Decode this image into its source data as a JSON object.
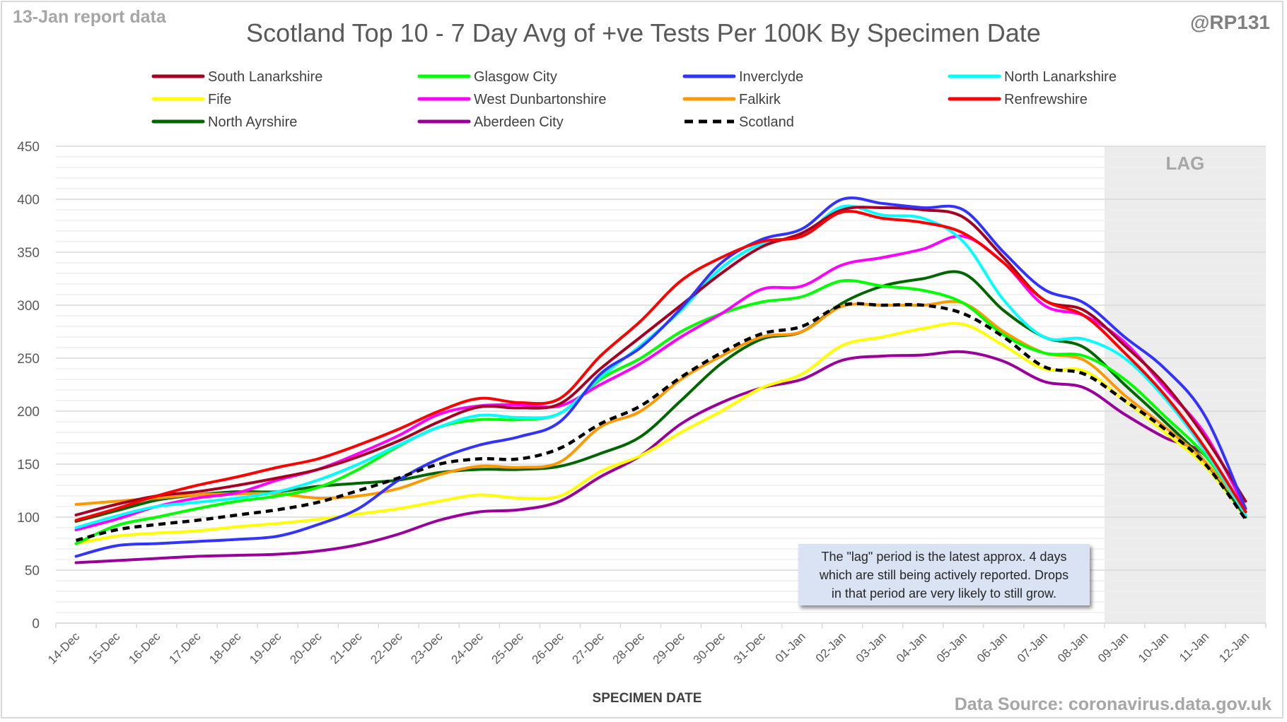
{
  "header": {
    "report_label": "13-Jan report data",
    "handle": "@RP131",
    "source": "Data Source: coronavirus.data.gov.uk"
  },
  "note": {
    "lines": [
      "The \"lag\" period is the latest approx. 4 days",
      "which are still being actively reported.  Drops",
      "in that period are very likely to still grow."
    ]
  },
  "chart_data": {
    "type": "line",
    "title": "Scotland Top 10 - 7 Day Avg of +ve Tests Per 100K By Specimen Date",
    "xlabel": "SPECIMEN DATE",
    "ylabel": "",
    "ylim": [
      0,
      450
    ],
    "yticks": [
      0,
      50,
      100,
      150,
      200,
      250,
      300,
      350,
      400,
      450
    ],
    "grid": true,
    "legend_position": "top",
    "lag_label": "LAG",
    "lag_start_category": "09-Jan",
    "categories": [
      "14-Dec",
      "15-Dec",
      "16-Dec",
      "17-Dec",
      "18-Dec",
      "19-Dec",
      "20-Dec",
      "21-Dec",
      "22-Dec",
      "23-Dec",
      "24-Dec",
      "25-Dec",
      "26-Dec",
      "27-Dec",
      "28-Dec",
      "29-Dec",
      "30-Dec",
      "31-Dec",
      "01-Jan",
      "02-Jan",
      "03-Jan",
      "04-Jan",
      "05-Jan",
      "06-Jan",
      "07-Jan",
      "08-Jan",
      "09-Jan",
      "10-Jan",
      "11-Jan",
      "12-Jan"
    ],
    "series": [
      {
        "name": "South Lanarkshire",
        "color": "#a50021",
        "dash": false,
        "values": [
          102,
          112,
          120,
          124,
          130,
          137,
          145,
          157,
          172,
          190,
          204,
          203,
          207,
          240,
          270,
          300,
          330,
          355,
          368,
          390,
          392,
          390,
          383,
          345,
          305,
          295,
          262,
          225,
          175,
          115
        ]
      },
      {
        "name": "Glasgow City",
        "color": "#00ff00",
        "dash": false,
        "values": [
          75,
          92,
          100,
          108,
          115,
          120,
          128,
          145,
          167,
          185,
          192,
          192,
          198,
          230,
          250,
          275,
          292,
          303,
          308,
          323,
          318,
          314,
          302,
          272,
          255,
          252,
          230,
          195,
          158,
          105
        ]
      },
      {
        "name": "Inverclyde",
        "color": "#3333ff",
        "dash": false,
        "values": [
          63,
          73,
          75,
          77,
          79,
          82,
          93,
          108,
          135,
          155,
          168,
          176,
          190,
          235,
          260,
          297,
          340,
          362,
          372,
          400,
          396,
          392,
          390,
          350,
          315,
          302,
          270,
          240,
          195,
          108
        ]
      },
      {
        "name": "North Lanarkshire",
        "color": "#00ffff",
        "dash": false,
        "values": [
          90,
          101,
          110,
          114,
          118,
          124,
          135,
          150,
          168,
          185,
          196,
          194,
          198,
          232,
          262,
          295,
          335,
          358,
          366,
          393,
          385,
          382,
          360,
          305,
          270,
          268,
          250,
          212,
          162,
          102
        ]
      },
      {
        "name": "Fife",
        "color": "#ffff00",
        "dash": false,
        "values": [
          75,
          82,
          85,
          87,
          91,
          94,
          98,
          103,
          108,
          115,
          121,
          118,
          120,
          143,
          158,
          180,
          200,
          222,
          235,
          262,
          270,
          278,
          282,
          262,
          240,
          238,
          210,
          180,
          148,
          100
        ]
      },
      {
        "name": "West Dunbartonshire",
        "color": "#ff00ff",
        "dash": false,
        "values": [
          88,
          98,
          110,
          118,
          123,
          135,
          145,
          160,
          177,
          197,
          205,
          206,
          205,
          225,
          245,
          270,
          292,
          315,
          318,
          338,
          345,
          353,
          365,
          340,
          300,
          290,
          265,
          222,
          178,
          108
        ]
      },
      {
        "name": "Falkirk",
        "color": "#ff9900",
        "dash": false,
        "values": [
          112,
          115,
          118,
          121,
          122,
          122,
          118,
          120,
          127,
          140,
          148,
          147,
          152,
          185,
          200,
          230,
          252,
          270,
          275,
          299,
          300,
          300,
          302,
          275,
          255,
          248,
          215,
          185,
          152,
          105
        ]
      },
      {
        "name": "Renfrewshire",
        "color": "#ff0000",
        "dash": false,
        "values": [
          97,
          108,
          120,
          130,
          138,
          147,
          155,
          168,
          183,
          200,
          212,
          208,
          212,
          252,
          285,
          323,
          345,
          360,
          365,
          388,
          382,
          378,
          368,
          340,
          305,
          290,
          255,
          215,
          165,
          105
        ]
      },
      {
        "name": "North Ayrshire",
        "color": "#006600",
        "dash": false,
        "values": [
          96,
          106,
          116,
          121,
          124,
          124,
          129,
          132,
          135,
          142,
          145,
          145,
          148,
          160,
          176,
          210,
          245,
          268,
          275,
          302,
          318,
          325,
          330,
          295,
          270,
          260,
          225,
          190,
          152,
          100
        ]
      },
      {
        "name": "Aberdeen City",
        "color": "#990099",
        "dash": false,
        "values": [
          57,
          59,
          61,
          63,
          64,
          65,
          68,
          74,
          84,
          97,
          105,
          107,
          115,
          138,
          158,
          188,
          208,
          222,
          230,
          248,
          252,
          253,
          256,
          247,
          228,
          222,
          197,
          175,
          158,
          100
        ]
      },
      {
        "name": "Scotland",
        "color": "#000000",
        "dash": true,
        "values": [
          78,
          88,
          93,
          97,
          102,
          107,
          114,
          125,
          137,
          150,
          155,
          155,
          165,
          188,
          205,
          232,
          255,
          273,
          280,
          300,
          300,
          300,
          292,
          270,
          242,
          235,
          210,
          183,
          150,
          98
        ]
      }
    ]
  }
}
